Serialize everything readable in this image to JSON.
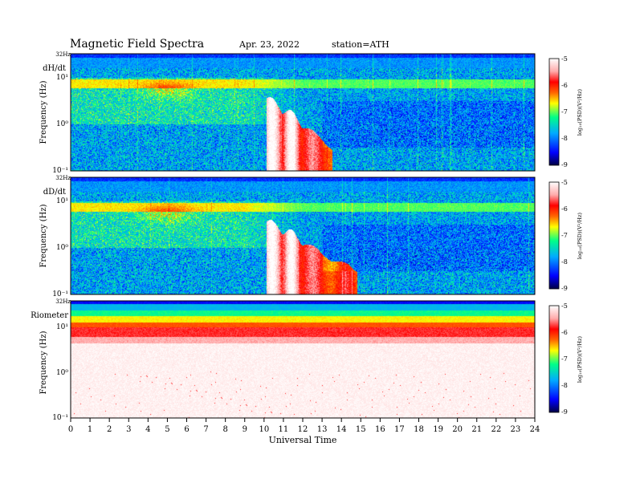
{
  "header": {
    "title": "Magnetic  Field  Spectra",
    "date": "Apr. 23, 2022",
    "station": "station=ATH"
  },
  "chart_data": {
    "type": "heatmap",
    "title": "Magnetic  Field  Spectra",
    "xlabel": "Universal  Time",
    "xlim": [
      0,
      24
    ],
    "x_ticks": [
      "0",
      "1",
      "2",
      "3",
      "4",
      "5",
      "6",
      "7",
      "8",
      "9",
      "10",
      "11",
      "12",
      "13",
      "14",
      "15",
      "16",
      "17",
      "18",
      "19",
      "20",
      "21",
      "22",
      "23",
      "24"
    ],
    "yscale": "log",
    "ylim": [
      0.1,
      32
    ],
    "colorbar": {
      "label": "log₁₀(PSD)(V²/Hz)",
      "range": [
        -9,
        -5
      ],
      "ticks": [
        "-5",
        "-6",
        "-7",
        "-8",
        "-9"
      ],
      "colors": [
        "#000044",
        "#0000ff",
        "#00aaff",
        "#00ff88",
        "#ffff00",
        "#ff6600",
        "#ff0000",
        "#ffffff"
      ]
    },
    "panels": [
      {
        "name": "dH/dt",
        "ylabel": "Frequency  (Hz)",
        "y_top_label": "32Hz",
        "y_tick_labels": [
          "10¹",
          "10⁰",
          "10⁻¹"
        ],
        "burst_window_ut": [
          10.2,
          13.5
        ]
      },
      {
        "name": "dD/dt",
        "ylabel": "Frequency  (Hz)",
        "y_top_label": "32Hz",
        "y_tick_labels": [
          "10¹",
          "10⁰",
          "10⁻¹"
        ],
        "burst_window_ut": [
          10.2,
          14.8
        ]
      },
      {
        "name": "Riometer",
        "ylabel": "Frequency  (Hz)",
        "y_top_label": "32Hz",
        "y_tick_labels": [
          "10¹",
          "10⁰",
          "10⁻¹"
        ]
      }
    ]
  }
}
